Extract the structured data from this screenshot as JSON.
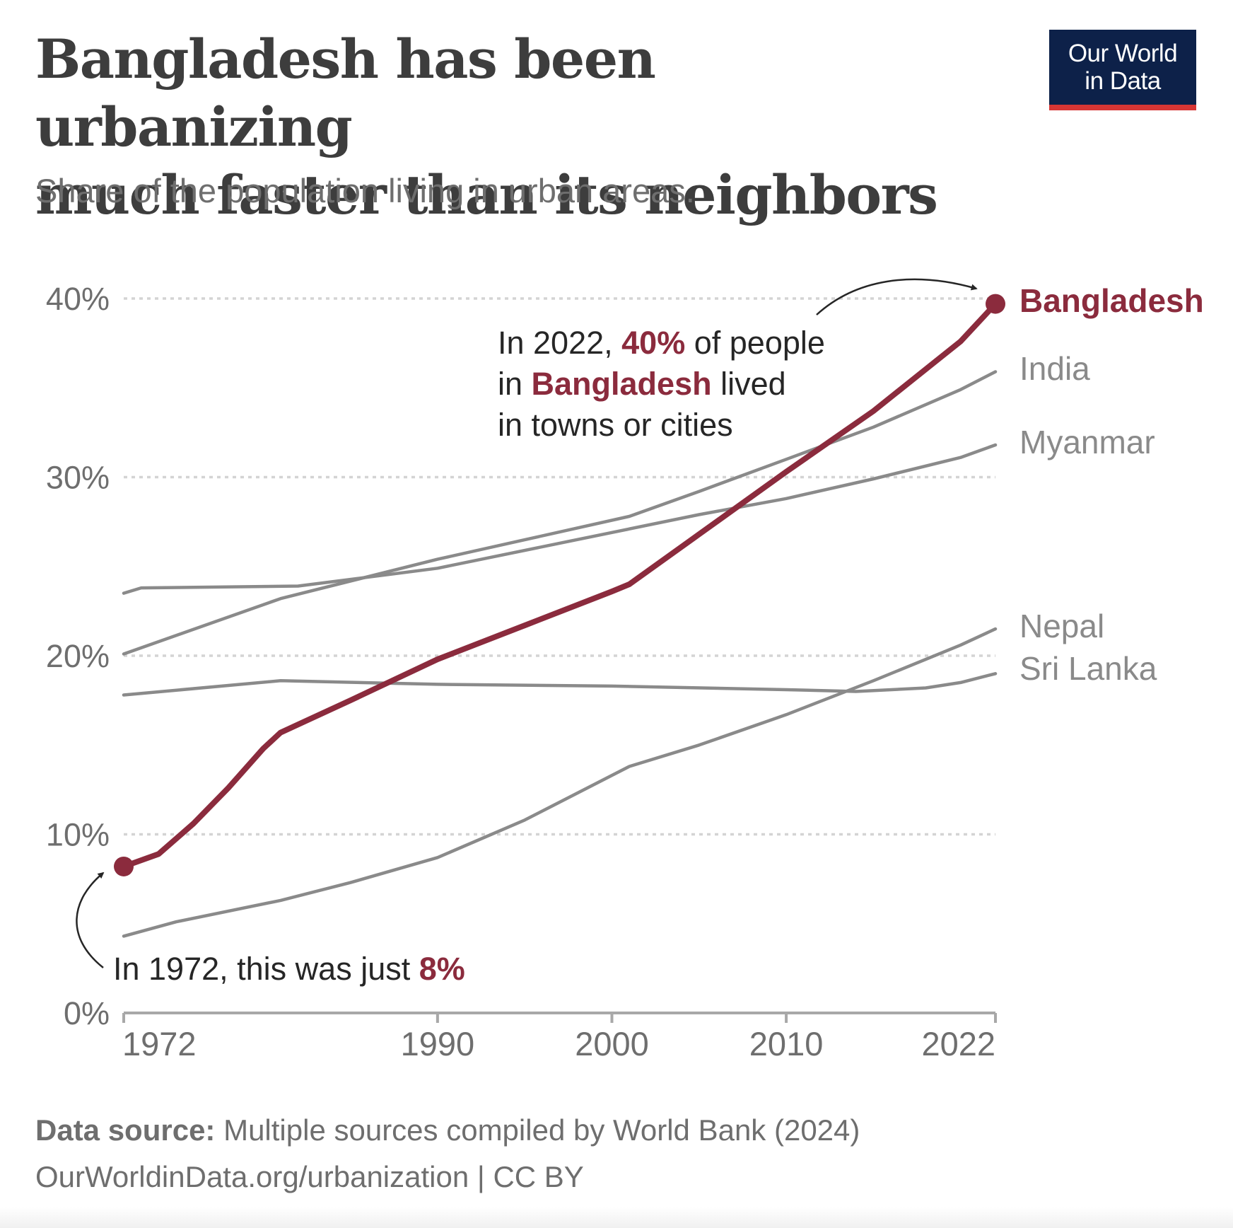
{
  "header": {
    "title_line1": "Bangladesh has been urbanizing",
    "title_line2": "much faster than its neighbors",
    "subtitle": "Share of the population living in urban areas.",
    "logo_line1": "Our World",
    "logo_line2": "in Data"
  },
  "annotations": {
    "top": {
      "line1": [
        "In 2022, ",
        "40%",
        " of people"
      ],
      "line2": [
        "in ",
        "Bangladesh",
        " lived"
      ],
      "line3": "in towns or cities"
    },
    "bottom": [
      "In 1972, this was just ",
      "8%"
    ]
  },
  "footer": {
    "source_label": "Data source:",
    "source_text": " Multiple sources compiled by World Bank (2024)",
    "url": "OurWorldinData.org/urbanization | CC BY"
  },
  "colors": {
    "highlight": "#8b2b3d",
    "other_series": "#8a8a8a",
    "grid": "#d4d4d4",
    "axis": "#a8a8a8",
    "text": "#3d3d3d",
    "muted_text": "#6e6e6e",
    "logo_bg": "#0d2149",
    "logo_accent": "#d73634"
  },
  "chart_data": {
    "type": "line",
    "title": "Bangladesh has been urbanizing much faster than its neighbors",
    "subtitle": "Share of the population living in urban areas.",
    "xlabel": "",
    "ylabel": "",
    "xlim": [
      1972,
      2022
    ],
    "ylim": [
      0,
      40
    ],
    "x_ticks": [
      1972,
      1990,
      2000,
      2010,
      2022
    ],
    "y_ticks": [
      {
        "value": 0,
        "label": "0%"
      },
      {
        "value": 10,
        "label": "10%"
      },
      {
        "value": 20,
        "label": "20%"
      },
      {
        "value": 30,
        "label": "30%"
      },
      {
        "value": 40,
        "label": "40%"
      }
    ],
    "grid": "horizontal-dotted",
    "legend": "labels at line ends",
    "series": [
      {
        "name": "Bangladesh",
        "highlight": true,
        "points": [
          [
            1972,
            8.2
          ],
          [
            1974,
            8.9
          ],
          [
            1976,
            10.6
          ],
          [
            1978,
            12.6
          ],
          [
            1980,
            14.8
          ],
          [
            1981,
            15.7
          ],
          [
            1985,
            17.5
          ],
          [
            1990,
            19.8
          ],
          [
            1995,
            21.7
          ],
          [
            2000,
            23.6
          ],
          [
            2001,
            24.0
          ],
          [
            2005,
            26.8
          ],
          [
            2010,
            30.3
          ],
          [
            2015,
            33.7
          ],
          [
            2020,
            37.6
          ],
          [
            2022,
            39.7
          ]
        ]
      },
      {
        "name": "India",
        "highlight": false,
        "points": [
          [
            1972,
            20.1
          ],
          [
            1981,
            23.2
          ],
          [
            1990,
            25.4
          ],
          [
            2001,
            27.8
          ],
          [
            2005,
            29.2
          ],
          [
            2010,
            31.0
          ],
          [
            2015,
            32.8
          ],
          [
            2020,
            34.9
          ],
          [
            2022,
            35.9
          ]
        ]
      },
      {
        "name": "Myanmar",
        "highlight": false,
        "points": [
          [
            1972,
            23.5
          ],
          [
            1973,
            23.8
          ],
          [
            1982,
            23.9
          ],
          [
            1990,
            24.9
          ],
          [
            2000,
            26.9
          ],
          [
            2005,
            27.9
          ],
          [
            2010,
            28.8
          ],
          [
            2015,
            29.9
          ],
          [
            2020,
            31.1
          ],
          [
            2022,
            31.8
          ]
        ]
      },
      {
        "name": "Nepal",
        "highlight": false,
        "points": [
          [
            1972,
            4.3
          ],
          [
            1975,
            5.1
          ],
          [
            1981,
            6.3
          ],
          [
            1985,
            7.3
          ],
          [
            1990,
            8.7
          ],
          [
            1995,
            10.8
          ],
          [
            2001,
            13.8
          ],
          [
            2005,
            15.0
          ],
          [
            2010,
            16.7
          ],
          [
            2015,
            18.6
          ],
          [
            2020,
            20.6
          ],
          [
            2022,
            21.5
          ]
        ]
      },
      {
        "name": "Sri Lanka",
        "highlight": false,
        "points": [
          [
            1972,
            17.8
          ],
          [
            1981,
            18.6
          ],
          [
            1990,
            18.4
          ],
          [
            2000,
            18.3
          ],
          [
            2010,
            18.1
          ],
          [
            2014,
            18.0
          ],
          [
            2018,
            18.2
          ],
          [
            2020,
            18.5
          ],
          [
            2022,
            19.0
          ]
        ]
      }
    ]
  }
}
